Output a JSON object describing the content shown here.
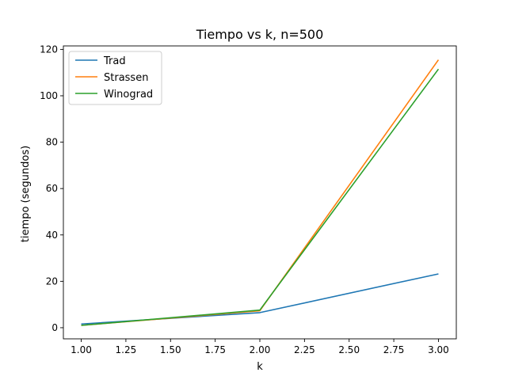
{
  "chart_data": {
    "type": "line",
    "title": "Tiempo vs k, n=500",
    "xlabel": "k",
    "ylabel": "tiempo (segundos)",
    "xlim": [
      0.9,
      3.1
    ],
    "ylim": [
      -4.8,
      121.5
    ],
    "xticks": [
      1.0,
      1.25,
      1.5,
      1.75,
      2.0,
      2.25,
      2.5,
      2.75,
      3.0
    ],
    "xtick_labels": [
      "1.00",
      "1.25",
      "1.50",
      "1.75",
      "2.00",
      "2.25",
      "2.50",
      "2.75",
      "3.00"
    ],
    "yticks": [
      0,
      20,
      40,
      60,
      80,
      100,
      120
    ],
    "ytick_labels": [
      "0",
      "20",
      "40",
      "60",
      "80",
      "100",
      "120"
    ],
    "grid": false,
    "legend_position": "top-left",
    "x": [
      1,
      2,
      3
    ],
    "series": [
      {
        "name": "Trad",
        "color": "#1f77b4",
        "values": [
          1.6,
          6.5,
          23.2
        ]
      },
      {
        "name": "Strassen",
        "color": "#ff7f0e",
        "values": [
          1.0,
          7.3,
          115.5
        ]
      },
      {
        "name": "Winograd",
        "color": "#2ca02c",
        "values": [
          1.0,
          7.6,
          111.5
        ]
      }
    ]
  }
}
